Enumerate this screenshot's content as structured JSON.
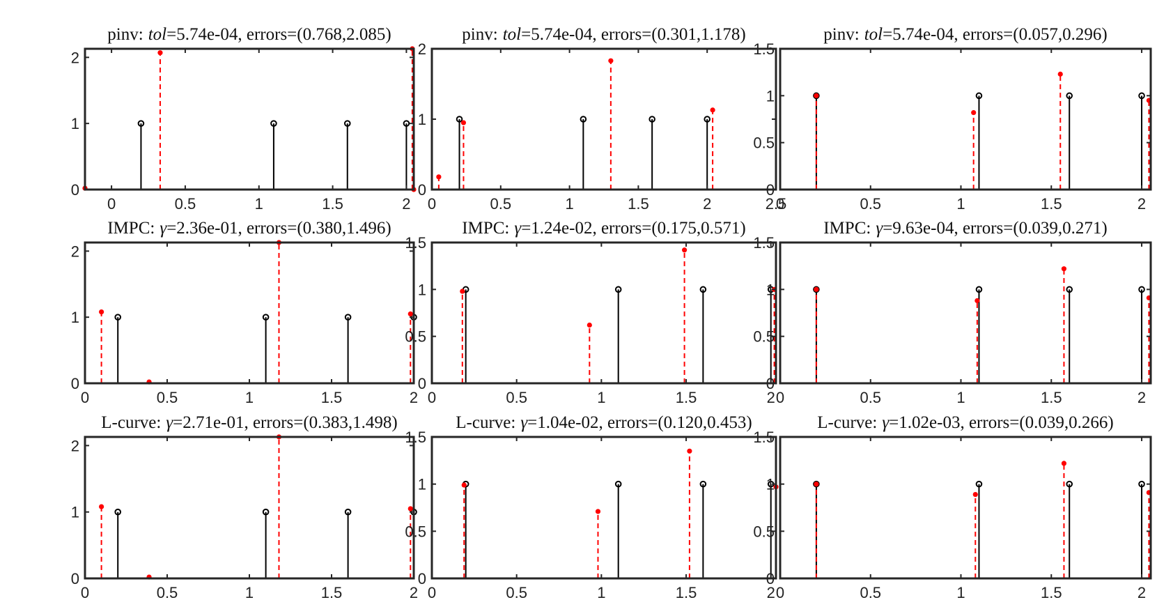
{
  "figure": {
    "rows": 3,
    "cols": 3
  },
  "colors": {
    "truth": "#000000",
    "estimate": "#ff0000",
    "axes": "#262626",
    "background": "#ffffff"
  },
  "chart_data": [
    {
      "type": "stem",
      "row": 0,
      "col": 0,
      "title": "pinv: tol=5.74e-04, errors=(0.768,2.085)",
      "title_parts": {
        "method": "pinv:",
        "param_symbol": "tol",
        "param_value": "=5.74e-04, errors=(0.768,2.085)"
      },
      "xlim": [
        -0.18,
        2.05
      ],
      "ylim": [
        0,
        2.13
      ],
      "xticks": [
        0,
        0.5,
        1,
        1.5,
        2
      ],
      "xtick_labels": [
        "0",
        "0.5",
        "1",
        "1.5",
        "2"
      ],
      "yticks": [
        0,
        1,
        2
      ],
      "ytick_labels": [
        "0",
        "1",
        "2"
      ],
      "truth": {
        "x": [
          0.2,
          1.1,
          1.6,
          2.0
        ],
        "y": [
          1,
          1,
          1,
          1
        ]
      },
      "estimate": {
        "x": [
          -0.18,
          0.33,
          2.04,
          2.05
        ],
        "y": [
          0.02,
          2.07,
          2.13,
          0
        ]
      }
    },
    {
      "type": "stem",
      "row": 0,
      "col": 1,
      "title": "pinv: tol=5.74e-04, errors=(0.301,1.178)",
      "title_parts": {
        "method": "pinv:",
        "param_symbol": "tol",
        "param_value": "=5.74e-04, errors=(0.301,1.178)"
      },
      "xlim": [
        0,
        2.5
      ],
      "ylim": [
        0,
        2
      ],
      "xticks": [
        0,
        0.5,
        1,
        1.5,
        2,
        2.5
      ],
      "xtick_labels": [
        "0",
        "0.5",
        "1",
        "1.5",
        "2",
        "2.5"
      ],
      "yticks": [
        0,
        1,
        2
      ],
      "ytick_labels": [
        "0",
        "1",
        "2"
      ],
      "truth": {
        "x": [
          0.2,
          1.1,
          1.6,
          2.0
        ],
        "y": [
          1,
          1,
          1,
          1
        ]
      },
      "estimate": {
        "x": [
          0.05,
          0.23,
          1.3,
          2.04
        ],
        "y": [
          0.18,
          0.95,
          1.83,
          1.13
        ]
      }
    },
    {
      "type": "stem",
      "row": 0,
      "col": 2,
      "title": "pinv: tol=5.74e-04, errors=(0.057,0.296)",
      "title_parts": {
        "method": "pinv:",
        "param_symbol": "tol",
        "param_value": "=5.74e-04, errors=(0.057,0.296)"
      },
      "xlim": [
        0,
        2.05
      ],
      "ylim": [
        0,
        1.5
      ],
      "xticks": [
        0,
        0.5,
        1,
        1.5,
        2
      ],
      "xtick_labels": [
        "0",
        "0.5",
        "1",
        "1.5",
        "2"
      ],
      "yticks": [
        0,
        0.5,
        1,
        1.5
      ],
      "ytick_labels": [
        "0",
        "0.5",
        "1",
        "1.5"
      ],
      "truth": {
        "x": [
          0.2,
          1.1,
          1.6,
          2.0
        ],
        "y": [
          1,
          1,
          1,
          1
        ]
      },
      "estimate": {
        "x": [
          0.2,
          1.07,
          1.55,
          2.04
        ],
        "y": [
          1.0,
          0.82,
          1.23,
          0.95
        ]
      }
    },
    {
      "type": "stem",
      "row": 1,
      "col": 0,
      "title": "IMPC: γ=2.36e-01, errors=(0.380,1.496)",
      "title_parts": {
        "method": "IMPC:",
        "param_symbol": "γ",
        "param_value": "=2.36e-01, errors=(0.380,1.496)"
      },
      "xlim": [
        0,
        2.0
      ],
      "ylim": [
        0,
        2.13
      ],
      "xticks": [
        0,
        0.5,
        1,
        1.5,
        2
      ],
      "xtick_labels": [
        "0",
        "0.5",
        "1",
        "1.5",
        "2"
      ],
      "yticks": [
        0,
        1,
        2
      ],
      "ytick_labels": [
        "0",
        "1",
        "2"
      ],
      "truth": {
        "x": [
          0.2,
          1.1,
          1.6,
          2.0
        ],
        "y": [
          1,
          1,
          1,
          1
        ]
      },
      "estimate": {
        "x": [
          0.1,
          0.39,
          1.18,
          1.98
        ],
        "y": [
          1.08,
          0.02,
          2.13,
          1.05
        ]
      }
    },
    {
      "type": "stem",
      "row": 1,
      "col": 1,
      "title": "IMPC: γ=1.24e-02, errors=(0.175,0.571)",
      "title_parts": {
        "method": "IMPC:",
        "param_symbol": "γ",
        "param_value": "=1.24e-02, errors=(0.175,0.571)"
      },
      "xlim": [
        0,
        2.03
      ],
      "ylim": [
        0,
        1.5
      ],
      "xticks": [
        0,
        0.5,
        1,
        1.5,
        2
      ],
      "xtick_labels": [
        "0",
        "0.5",
        "1",
        "1.5",
        "2"
      ],
      "yticks": [
        0,
        0.5,
        1,
        1.5
      ],
      "ytick_labels": [
        "0",
        "0.5",
        "1",
        "1.5"
      ],
      "truth": {
        "x": [
          0.2,
          1.1,
          1.6,
          2.0
        ],
        "y": [
          1,
          1,
          1,
          1
        ]
      },
      "estimate": {
        "x": [
          0.18,
          0.93,
          1.49,
          2.02
        ],
        "y": [
          0.98,
          0.62,
          1.42,
          1.0
        ]
      }
    },
    {
      "type": "stem",
      "row": 1,
      "col": 2,
      "title": "IMPC: γ=9.63e-04, errors=(0.039,0.271)",
      "title_parts": {
        "method": "IMPC:",
        "param_symbol": "γ",
        "param_value": "=9.63e-04, errors=(0.039,0.271)"
      },
      "xlim": [
        0,
        2.05
      ],
      "ylim": [
        0,
        1.5
      ],
      "xticks": [
        0,
        0.5,
        1,
        1.5,
        2
      ],
      "xtick_labels": [
        "0",
        "0.5",
        "1",
        "1.5",
        "2"
      ],
      "yticks": [
        0,
        0.5,
        1,
        1.5
      ],
      "ytick_labels": [
        "0",
        "0.5",
        "1",
        "1.5"
      ],
      "truth": {
        "x": [
          0.2,
          1.1,
          1.6,
          2.0
        ],
        "y": [
          1,
          1,
          1,
          1
        ]
      },
      "estimate": {
        "x": [
          0.2,
          1.09,
          1.57,
          2.04
        ],
        "y": [
          1.0,
          0.88,
          1.22,
          0.91
        ]
      }
    },
    {
      "type": "stem",
      "row": 2,
      "col": 0,
      "title": "L-curve: γ=2.71e-01, errors=(0.383,1.498)",
      "title_parts": {
        "method": "L-curve:",
        "param_symbol": "γ",
        "param_value": "=2.71e-01, errors=(0.383,1.498)"
      },
      "xlim": [
        0,
        2.0
      ],
      "ylim": [
        0,
        2.13
      ],
      "xticks": [
        0,
        0.5,
        1,
        1.5,
        2
      ],
      "xtick_labels": [
        "0",
        "0.5",
        "1",
        "1.5",
        "2"
      ],
      "yticks": [
        0,
        1,
        2
      ],
      "ytick_labels": [
        "0",
        "1",
        "2"
      ],
      "truth": {
        "x": [
          0.2,
          1.1,
          1.6,
          2.0
        ],
        "y": [
          1,
          1,
          1,
          1
        ]
      },
      "estimate": {
        "x": [
          0.1,
          0.39,
          1.18,
          1.98
        ],
        "y": [
          1.08,
          0.02,
          2.13,
          1.05
        ]
      }
    },
    {
      "type": "stem",
      "row": 2,
      "col": 1,
      "title": "L-curve: γ=1.04e-02, errors=(0.120,0.453)",
      "title_parts": {
        "method": "L-curve:",
        "param_symbol": "γ",
        "param_value": "=1.04e-02, errors=(0.120,0.453)"
      },
      "xlim": [
        0,
        2.03
      ],
      "ylim": [
        0,
        1.5
      ],
      "xticks": [
        0,
        0.5,
        1,
        1.5,
        2
      ],
      "xtick_labels": [
        "0",
        "0.5",
        "1",
        "1.5",
        "2"
      ],
      "yticks": [
        0,
        0.5,
        1,
        1.5
      ],
      "ytick_labels": [
        "0",
        "0.5",
        "1",
        "1.5"
      ],
      "truth": {
        "x": [
          0.2,
          1.1,
          1.6,
          2.0
        ],
        "y": [
          1,
          1,
          1,
          1
        ]
      },
      "estimate": {
        "x": [
          0.19,
          0.98,
          1.52,
          2.03
        ],
        "y": [
          0.99,
          0.71,
          1.35,
          0.97
        ]
      }
    },
    {
      "type": "stem",
      "row": 2,
      "col": 2,
      "title": "L-curve: γ=1.02e-03, errors=(0.039,0.266)",
      "title_parts": {
        "method": "L-curve:",
        "param_symbol": "γ",
        "param_value": "=1.02e-03, errors=(0.039,0.266)"
      },
      "xlim": [
        0,
        2.05
      ],
      "ylim": [
        0,
        1.5
      ],
      "xticks": [
        0,
        0.5,
        1,
        1.5,
        2
      ],
      "xtick_labels": [
        "0",
        "0.5",
        "1",
        "1.5",
        "2"
      ],
      "yticks": [
        0,
        0.5,
        1,
        1.5
      ],
      "ytick_labels": [
        "0",
        "0.5",
        "1",
        "1.5"
      ],
      "truth": {
        "x": [
          0.2,
          1.1,
          1.6,
          2.0
        ],
        "y": [
          1,
          1,
          1,
          1
        ]
      },
      "estimate": {
        "x": [
          0.2,
          1.08,
          1.57,
          2.04
        ],
        "y": [
          1.0,
          0.89,
          1.22,
          0.91
        ]
      }
    }
  ]
}
